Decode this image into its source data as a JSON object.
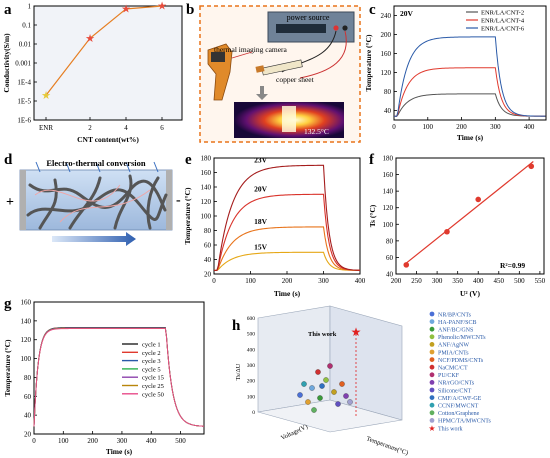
{
  "panel_labels": [
    "a",
    "b",
    "c",
    "d",
    "e",
    "f",
    "g",
    "h"
  ],
  "panel_b": {
    "power_source": "power source",
    "camera": "thermal imaging camera",
    "copper": "copper sheet",
    "temp": "132.5°C"
  },
  "panel_d": {
    "title": "Electro-thermal conversion",
    "plus": "+",
    "minus": "-"
  },
  "colors": {
    "orange": "#e67e22",
    "red": "#e03a2e",
    "dark_red": "#b22222",
    "blue": "#2a5aa8",
    "grey": "#555555"
  },
  "chart_data": [
    {
      "id": "a",
      "type": "line",
      "x": [
        0,
        2,
        4,
        6
      ],
      "xticks": [
        "ENR",
        "2",
        "4",
        "6"
      ],
      "y": [
        2e-05,
        0.02,
        0.7,
        1.0
      ],
      "xlabel": "CNT content(wt%)",
      "ylabel": "Conductivity(S/m)",
      "yscale": "log",
      "ylim": [
        1e-06,
        1
      ],
      "yticks": [
        "1E-6",
        "1E-5",
        "1E-4",
        "0.001",
        "0.01",
        "0.1",
        "1"
      ]
    },
    {
      "id": "c",
      "type": "line",
      "annotation": "20V",
      "xlabel": "Time (s)",
      "ylabel": "Temperature (°C)",
      "xlim": [
        0,
        450
      ],
      "ylim": [
        20,
        260
      ],
      "xticks": [
        0,
        100,
        200,
        300,
        400
      ],
      "yticks": [
        40,
        80,
        120,
        160,
        200,
        240
      ],
      "legend": "top-right",
      "series": [
        {
          "name": "ENR/LA/CNT-2",
          "plateau": 75,
          "color": "#555555"
        },
        {
          "name": "ENR/LA/CNT-4",
          "plateau": 130,
          "color": "#e03a2e"
        },
        {
          "name": "ENR/LA/CNT-6",
          "plateau": 195,
          "color": "#2a5aa8"
        }
      ]
    },
    {
      "id": "e",
      "type": "line",
      "xlabel": "Time (s)",
      "ylabel": "Temperature (°C)",
      "xlim": [
        0,
        400
      ],
      "ylim": [
        20,
        180
      ],
      "xticks": [
        0,
        100,
        200,
        300,
        400
      ],
      "yticks": [
        20,
        40,
        60,
        80,
        100,
        120,
        140,
        160,
        180
      ],
      "series": [
        {
          "name": "15V",
          "plateau": 50,
          "color": "#e6a817"
        },
        {
          "name": "18V",
          "plateau": 85,
          "color": "#e8731a"
        },
        {
          "name": "20V",
          "plateau": 130,
          "color": "#d9332b"
        },
        {
          "name": "23V",
          "plateau": 170,
          "color": "#a51d1d"
        }
      ]
    },
    {
      "id": "f",
      "type": "scatter",
      "x": [
        225,
        324,
        400,
        529
      ],
      "y": [
        51,
        91,
        130,
        170
      ],
      "xlabel": "U² (V)",
      "ylabel": "Ts (°C)",
      "xlim": [
        200,
        560
      ],
      "ylim": [
        40,
        180
      ],
      "xticks": [
        200,
        250,
        300,
        350,
        400,
        450,
        500,
        550
      ],
      "yticks": [
        40,
        60,
        80,
        100,
        120,
        140,
        160,
        180
      ],
      "annotation": "R²=0.99"
    },
    {
      "id": "g",
      "type": "line",
      "xlabel": "Time (s)",
      "ylabel": "Temperature (°C)",
      "xlim": [
        0,
        580
      ],
      "ylim": [
        20,
        160
      ],
      "xticks": [
        0,
        100,
        200,
        300,
        400,
        500
      ],
      "yticks": [
        20,
        40,
        60,
        80,
        100,
        120,
        140,
        160
      ],
      "legend": "bottom-right",
      "series": [
        {
          "name": "cycle 1",
          "color": "#222222"
        },
        {
          "name": "cycle 2",
          "color": "#e03a2e"
        },
        {
          "name": "cycle 3",
          "color": "#2a5aa8"
        },
        {
          "name": "cycle 5",
          "color": "#2bb24c"
        },
        {
          "name": "cycle 15",
          "color": "#8e44ad"
        },
        {
          "name": "cycle 25",
          "color": "#b8860b"
        },
        {
          "name": "cycle 50",
          "color": "#e84c8a"
        }
      ]
    },
    {
      "id": "h",
      "type": "scatter",
      "annotation": "This work",
      "yaxis_label": "Ts/ΔU",
      "x1label": "Voltage(V)",
      "x2label": "Temperature(°C)",
      "zticks": [
        0,
        100,
        200,
        300,
        400,
        500,
        600
      ],
      "legend": [
        {
          "name": "NR/BP/CNTs",
          "color": "#4a6fd6"
        },
        {
          "name": "HA-PANF/SCB",
          "color": "#6fa8dc"
        },
        {
          "name": "ANF/BC/GNS",
          "color": "#3a9a3a"
        },
        {
          "name": "Phenolic/MWCNTs",
          "color": "#90c040"
        },
        {
          "name": "ANF/AgNW",
          "color": "#c2a020"
        },
        {
          "name": "PMIA/CNTs",
          "color": "#e0a030"
        },
        {
          "name": "NCF/PDMS/CNTs",
          "color": "#e06020"
        },
        {
          "name": "NaCMC/CT",
          "color": "#d03030"
        },
        {
          "name": "PU/CKF",
          "color": "#b03070"
        },
        {
          "name": "NR/rGO/CNTs",
          "color": "#8040b0"
        },
        {
          "name": "Silicone/CNT",
          "color": "#6050c0"
        },
        {
          "name": "CMF/A/CWF-GE",
          "color": "#3070c0"
        },
        {
          "name": "CCNF/MWCNT",
          "color": "#30a0b0"
        },
        {
          "name": "Cotton/Graphene",
          "color": "#60b060"
        },
        {
          "name": "HPMC/TA/MWCNTs",
          "color": "#a0a0d0"
        },
        {
          "name": "This work",
          "color": "#e02020",
          "marker": "star"
        }
      ]
    }
  ]
}
